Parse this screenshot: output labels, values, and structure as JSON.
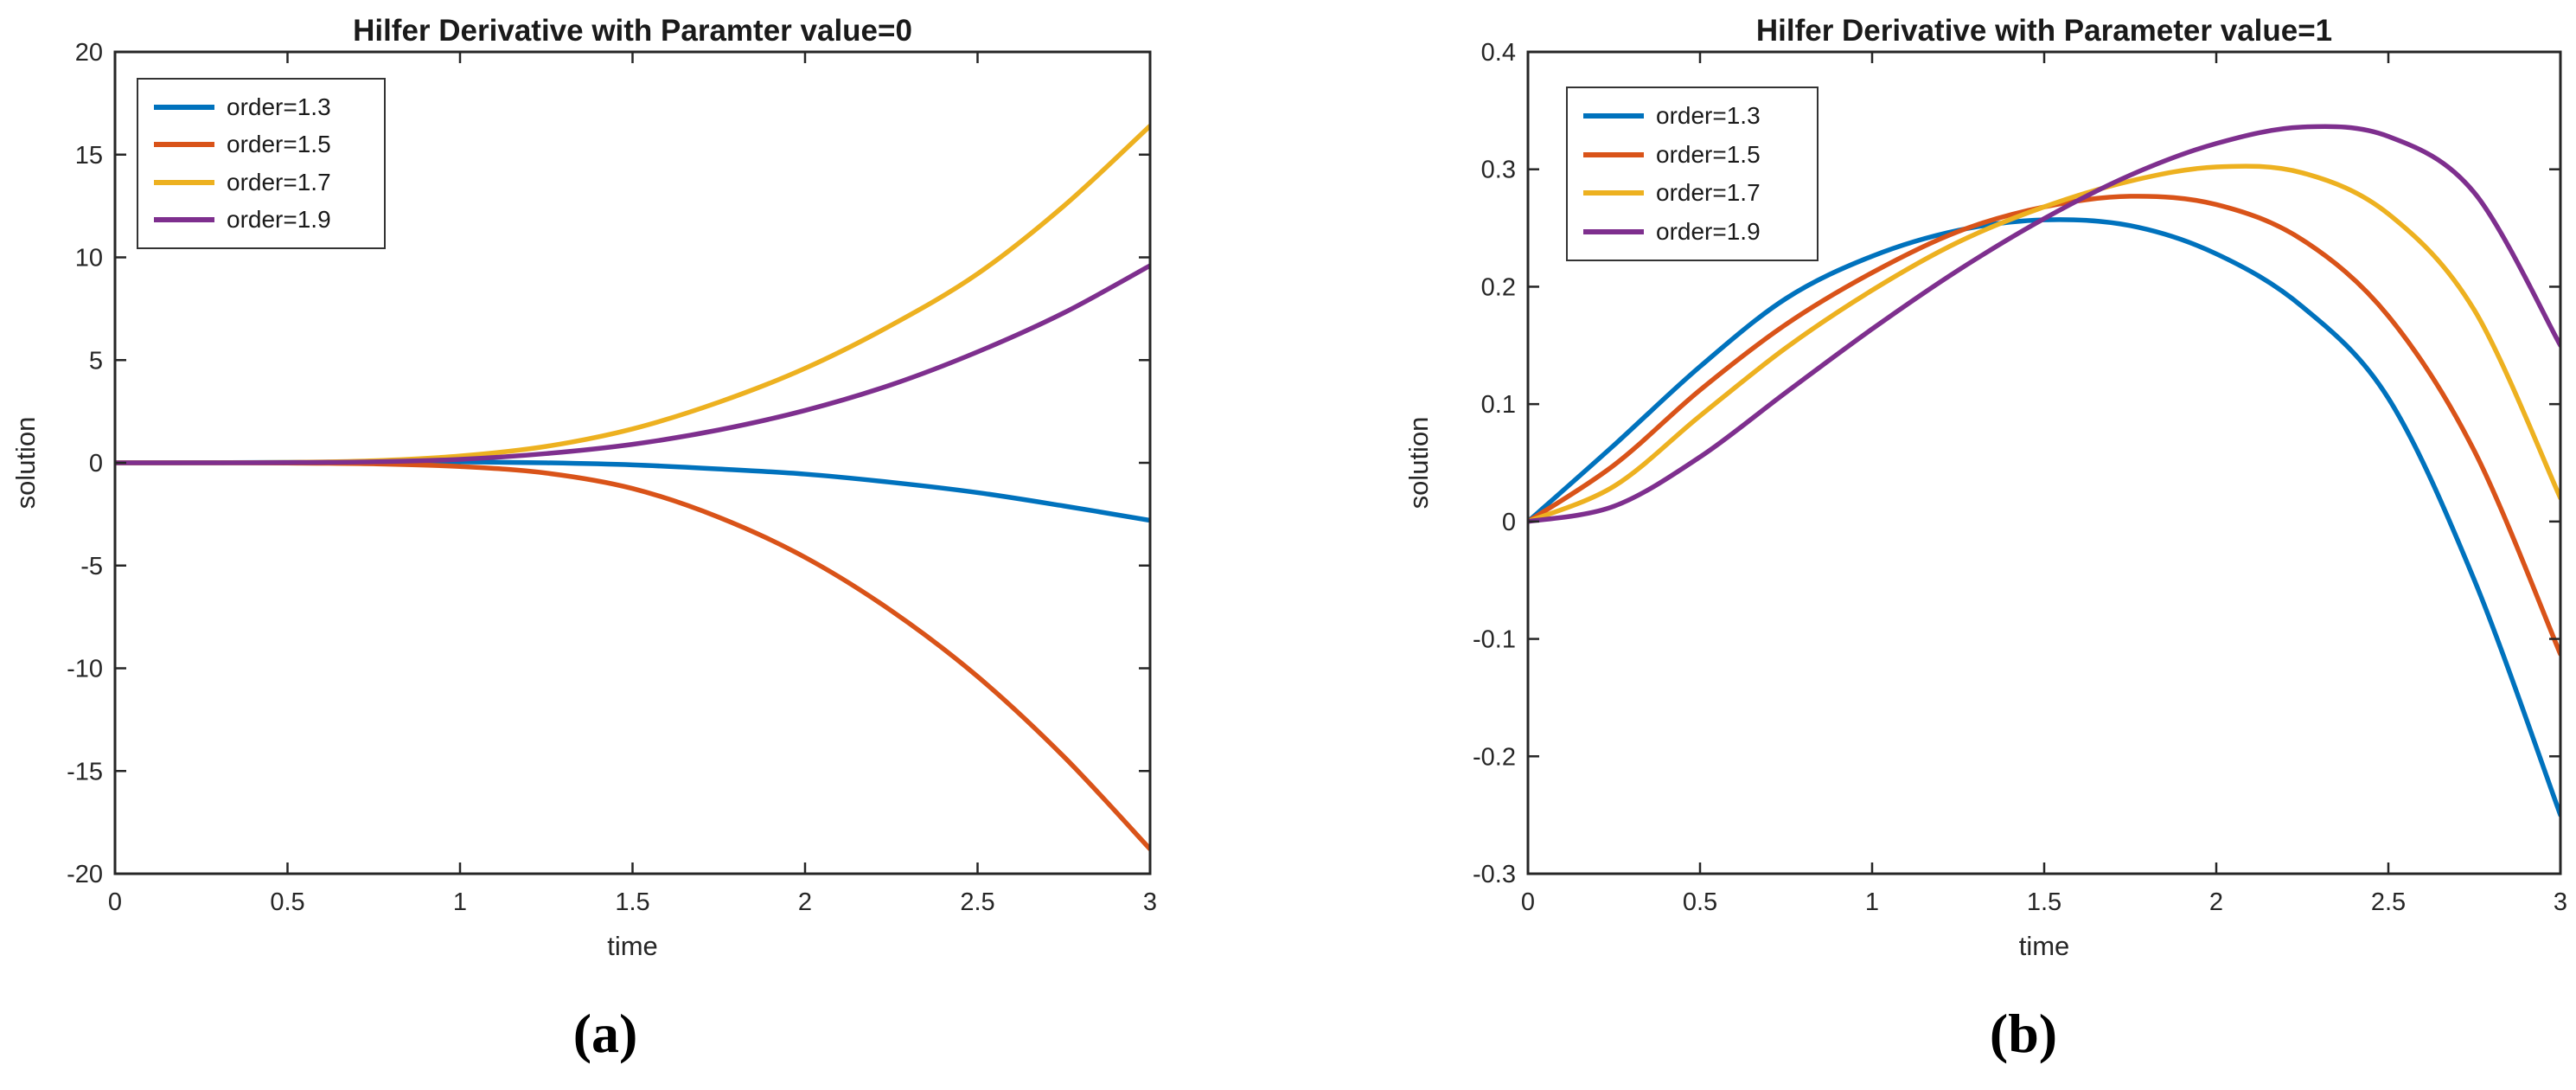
{
  "figure": {
    "background": "#ffffff"
  },
  "chart_data": [
    {
      "id": "a",
      "type": "line",
      "title": "Hilfer Derivative with Paramter value=0",
      "xlabel": "time",
      "ylabel": "solution",
      "caption": "(a)",
      "xlim": [
        0,
        3
      ],
      "ylim": [
        -20,
        20
      ],
      "x_ticks": [
        0,
        0.5,
        1,
        1.5,
        2,
        2.5,
        3
      ],
      "x_tick_labels": [
        "0",
        "0.5",
        "1",
        "1.5",
        "2",
        "2.5",
        "3"
      ],
      "y_ticks": [
        -20,
        -15,
        -10,
        -5,
        0,
        5,
        10,
        15,
        20
      ],
      "y_tick_labels": [
        "-20",
        "-15",
        "-10",
        "-5",
        "0",
        "5",
        "10",
        "15",
        "20"
      ],
      "grid": false,
      "legend_position": "upper-left",
      "axis_color": "#262626",
      "x": [
        0,
        0.25,
        0.5,
        0.75,
        1,
        1.25,
        1.5,
        1.75,
        2,
        2.25,
        2.5,
        2.75,
        3
      ],
      "series": [
        {
          "name": "order=1.3",
          "color": "#0072BD",
          "values": [
            0,
            0.01,
            0.02,
            0.04,
            0.05,
            0,
            -0.1,
            -0.3,
            -0.55,
            -0.95,
            -1.45,
            -2.1,
            -2.8
          ]
        },
        {
          "name": "order=1.5",
          "color": "#D95319",
          "values": [
            0,
            0,
            -0.01,
            -0.05,
            -0.18,
            -0.5,
            -1.25,
            -2.65,
            -4.6,
            -7.2,
            -10.4,
            -14.3,
            -18.8
          ]
        },
        {
          "name": "order=1.7",
          "color": "#EDB120",
          "values": [
            0,
            0,
            0.02,
            0.1,
            0.33,
            0.8,
            1.65,
            2.95,
            4.6,
            6.7,
            9.2,
            12.5,
            16.4
          ]
        },
        {
          "name": "order=1.9",
          "color": "#7E2F8E",
          "values": [
            0,
            0,
            0.01,
            0.05,
            0.17,
            0.45,
            0.9,
            1.6,
            2.55,
            3.8,
            5.4,
            7.3,
            9.6
          ]
        }
      ]
    },
    {
      "id": "b",
      "type": "line",
      "title": "Hilfer Derivative with Parameter value=1",
      "xlabel": "time",
      "ylabel": "solution",
      "caption": "(b)",
      "xlim": [
        0,
        3
      ],
      "ylim": [
        -0.3,
        0.4
      ],
      "x_ticks": [
        0,
        0.5,
        1,
        1.5,
        2,
        2.5,
        3
      ],
      "x_tick_labels": [
        "0",
        "0.5",
        "1",
        "1.5",
        "2",
        "2.5",
        "3"
      ],
      "y_ticks": [
        -0.3,
        -0.2,
        -0.1,
        0,
        0.1,
        0.2,
        0.3,
        0.4
      ],
      "y_tick_labels": [
        "-0.3",
        "-0.2",
        "-0.1",
        "0",
        "0.1",
        "0.2",
        "0.3",
        "0.4"
      ],
      "grid": false,
      "legend_position": "upper-left",
      "axis_color": "#262626",
      "x": [
        0,
        0.25,
        0.5,
        0.75,
        1,
        1.25,
        1.5,
        1.75,
        2,
        2.25,
        2.5,
        2.75,
        3
      ],
      "series": [
        {
          "name": "order=1.3",
          "color": "#0072BD",
          "values": [
            0,
            0.065,
            0.132,
            0.19,
            0.226,
            0.248,
            0.257,
            0.252,
            0.228,
            0.183,
            0.105,
            -0.05,
            -0.25
          ]
        },
        {
          "name": "order=1.5",
          "color": "#D95319",
          "values": [
            0,
            0.048,
            0.112,
            0.168,
            0.212,
            0.247,
            0.268,
            0.277,
            0.27,
            0.24,
            0.175,
            0.06,
            -0.113
          ]
        },
        {
          "name": "order=1.7",
          "color": "#EDB120",
          "values": [
            0,
            0.03,
            0.09,
            0.148,
            0.197,
            0.238,
            0.268,
            0.29,
            0.302,
            0.297,
            0.262,
            0.18,
            0.02
          ]
        },
        {
          "name": "order=1.9",
          "color": "#7E2F8E",
          "values": [
            0,
            0.013,
            0.055,
            0.11,
            0.164,
            0.214,
            0.258,
            0.295,
            0.322,
            0.336,
            0.328,
            0.28,
            0.15
          ]
        }
      ]
    }
  ]
}
